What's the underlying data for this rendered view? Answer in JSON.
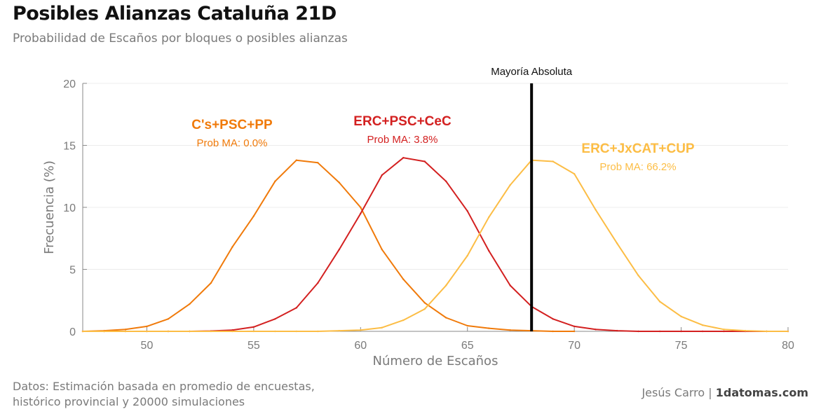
{
  "header": {
    "title": "Posibles Alianzas Cataluña 21D",
    "subtitle": "Probabilidad de Escaños por bloques o posibles alianzas"
  },
  "footer": {
    "source_line1": "Datos: Estimación basada en promedio de encuestas,",
    "source_line2": "histórico provincial y 20000 simulaciones",
    "author": "Jesús Carro",
    "separator": " | ",
    "site": "1datomas.com"
  },
  "chart_data": {
    "type": "line",
    "title": "Posibles Alianzas Cataluña 21D",
    "xlabel": "Número de Escaños",
    "ylabel": "Frecuencia (%)",
    "xlim": [
      47,
      80
    ],
    "ylim": [
      0,
      20
    ],
    "xticks": [
      50,
      55,
      60,
      65,
      70,
      75,
      80
    ],
    "yticks": [
      0,
      5,
      10,
      15,
      20
    ],
    "grid": true,
    "reference_line": {
      "x": 68,
      "label": "Mayoría Absoluta",
      "color": "#000000"
    },
    "series": [
      {
        "name": "C's+PSC+PP",
        "prob_label": "Prob MA: 0.0%",
        "color": "#f07a0a",
        "x": [
          47,
          48,
          49,
          50,
          51,
          52,
          53,
          54,
          55,
          56,
          57,
          58,
          59,
          60,
          61,
          62,
          63,
          64,
          65,
          66,
          67,
          68,
          69,
          70
        ],
        "values": [
          0,
          0.05,
          0.15,
          0.4,
          1.0,
          2.2,
          3.9,
          6.8,
          9.3,
          12.1,
          13.8,
          13.6,
          12.0,
          10.0,
          6.6,
          4.2,
          2.3,
          1.1,
          0.45,
          0.25,
          0.1,
          0.05,
          0,
          0
        ]
      },
      {
        "name": "ERC+PSC+CeC",
        "prob_label": "Prob MA: 3.8%",
        "color": "#d32020",
        "x": [
          47,
          48,
          49,
          50,
          51,
          52,
          53,
          54,
          55,
          56,
          57,
          58,
          59,
          60,
          61,
          62,
          63,
          64,
          65,
          66,
          67,
          68,
          69,
          70,
          71,
          72,
          73,
          74,
          75,
          76,
          77,
          78,
          79,
          80
        ],
        "values": [
          0,
          0,
          0,
          0,
          0,
          0,
          0.03,
          0.1,
          0.35,
          1.0,
          1.9,
          3.9,
          6.6,
          9.5,
          12.6,
          14.0,
          13.7,
          12.1,
          9.7,
          6.5,
          3.7,
          2.0,
          1.0,
          0.4,
          0.15,
          0.05,
          0,
          0,
          0,
          0,
          0,
          0,
          0,
          0
        ]
      },
      {
        "name": "ERC+JxCAT+CUP",
        "prob_label": "Prob MA: 66.2%",
        "color": "#fcbd45",
        "x": [
          47,
          48,
          49,
          50,
          51,
          52,
          53,
          54,
          55,
          56,
          57,
          58,
          59,
          60,
          61,
          62,
          63,
          64,
          65,
          66,
          67,
          68,
          69,
          70,
          71,
          72,
          73,
          74,
          75,
          76,
          77,
          78,
          79,
          80
        ],
        "values": [
          0,
          0,
          0,
          0,
          0,
          0,
          0,
          0,
          0,
          0,
          0,
          0,
          0.05,
          0.1,
          0.3,
          0.9,
          1.8,
          3.7,
          6.1,
          9.2,
          11.8,
          13.8,
          13.7,
          12.7,
          9.8,
          7.1,
          4.5,
          2.4,
          1.2,
          0.5,
          0.15,
          0.05,
          0,
          0
        ]
      }
    ]
  }
}
